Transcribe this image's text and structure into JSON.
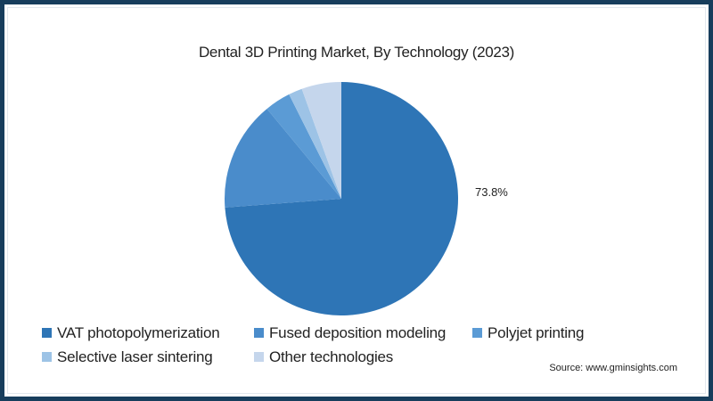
{
  "chart_data": {
    "type": "pie",
    "title": "Dental 3D Printing Market, By Technology (2023)",
    "categories": [
      "VAT photopolymerization",
      "Fused deposition modeling",
      "Polyjet printing",
      "Selective laser sintering",
      "Other technologies"
    ],
    "values": [
      73.8,
      15.2,
      3.6,
      1.9,
      5.5
    ],
    "colors": [
      "#2E75B6",
      "#4A8CCB",
      "#5B9BD5",
      "#9DC3E6",
      "#C5D6EC"
    ],
    "data_labels": [
      {
        "category": "VAT photopolymerization",
        "text": "73.8%"
      }
    ],
    "start_angle_deg": 0,
    "direction": "clockwise",
    "legend_position": "bottom-left",
    "unit": "%"
  },
  "header": {
    "title": "Dental 3D Printing Market, By Technology (2023)"
  },
  "labels": {
    "vat_pct": "73.8%"
  },
  "legend": {
    "items": [
      {
        "label": "VAT photopolymerization",
        "color": "#2E75B6"
      },
      {
        "label": "Fused deposition modeling",
        "color": "#4A8CCB"
      },
      {
        "label": "Polyjet printing",
        "color": "#5B9BD5"
      },
      {
        "label": "Selective laser sintering",
        "color": "#9DC3E6"
      },
      {
        "label": "Other technologies",
        "color": "#C5D6EC"
      }
    ]
  },
  "footer": {
    "source": "Source: www.gminsights.com"
  },
  "theme": {
    "border_color": "#173d5c"
  }
}
